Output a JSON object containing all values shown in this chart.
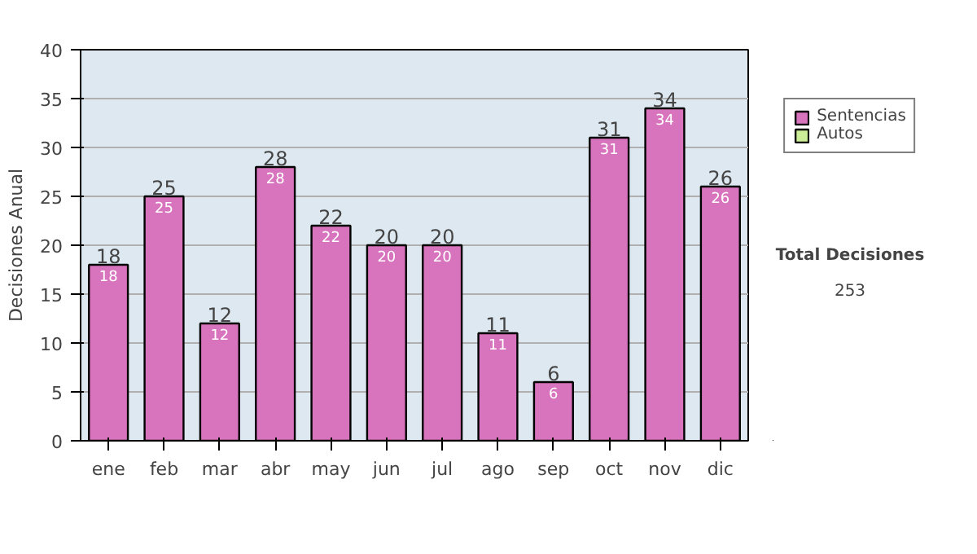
{
  "chart_data": {
    "type": "bar",
    "stacked": true,
    "ylabel": "Decisiones Anual",
    "categories": [
      "ene",
      "feb",
      "mar",
      "abr",
      "may",
      "jun",
      "jul",
      "ago",
      "sep",
      "oct",
      "nov",
      "dic"
    ],
    "series": [
      {
        "name": "Sentencias",
        "color": "#d874bd",
        "values": [
          18,
          25,
          12,
          28,
          22,
          20,
          20,
          11,
          6,
          31,
          34,
          26
        ]
      },
      {
        "name": "Autos",
        "color": "#ccee99",
        "values": [
          null,
          null,
          null,
          null,
          null,
          null,
          null,
          null,
          null,
          null,
          null,
          null
        ]
      }
    ],
    "totals": [
      "18",
      "25",
      "12",
      "28",
      "22",
      "20",
      "20",
      "11",
      "6",
      "31",
      "34",
      "26"
    ],
    "data_labels": true,
    "ylim": [
      0,
      40
    ],
    "yticks": [
      0,
      5,
      10,
      15,
      20,
      25,
      30,
      35,
      40
    ],
    "grid": "y",
    "legend": "right",
    "annotations": [
      "Total Decisiones",
      "253"
    ]
  }
}
